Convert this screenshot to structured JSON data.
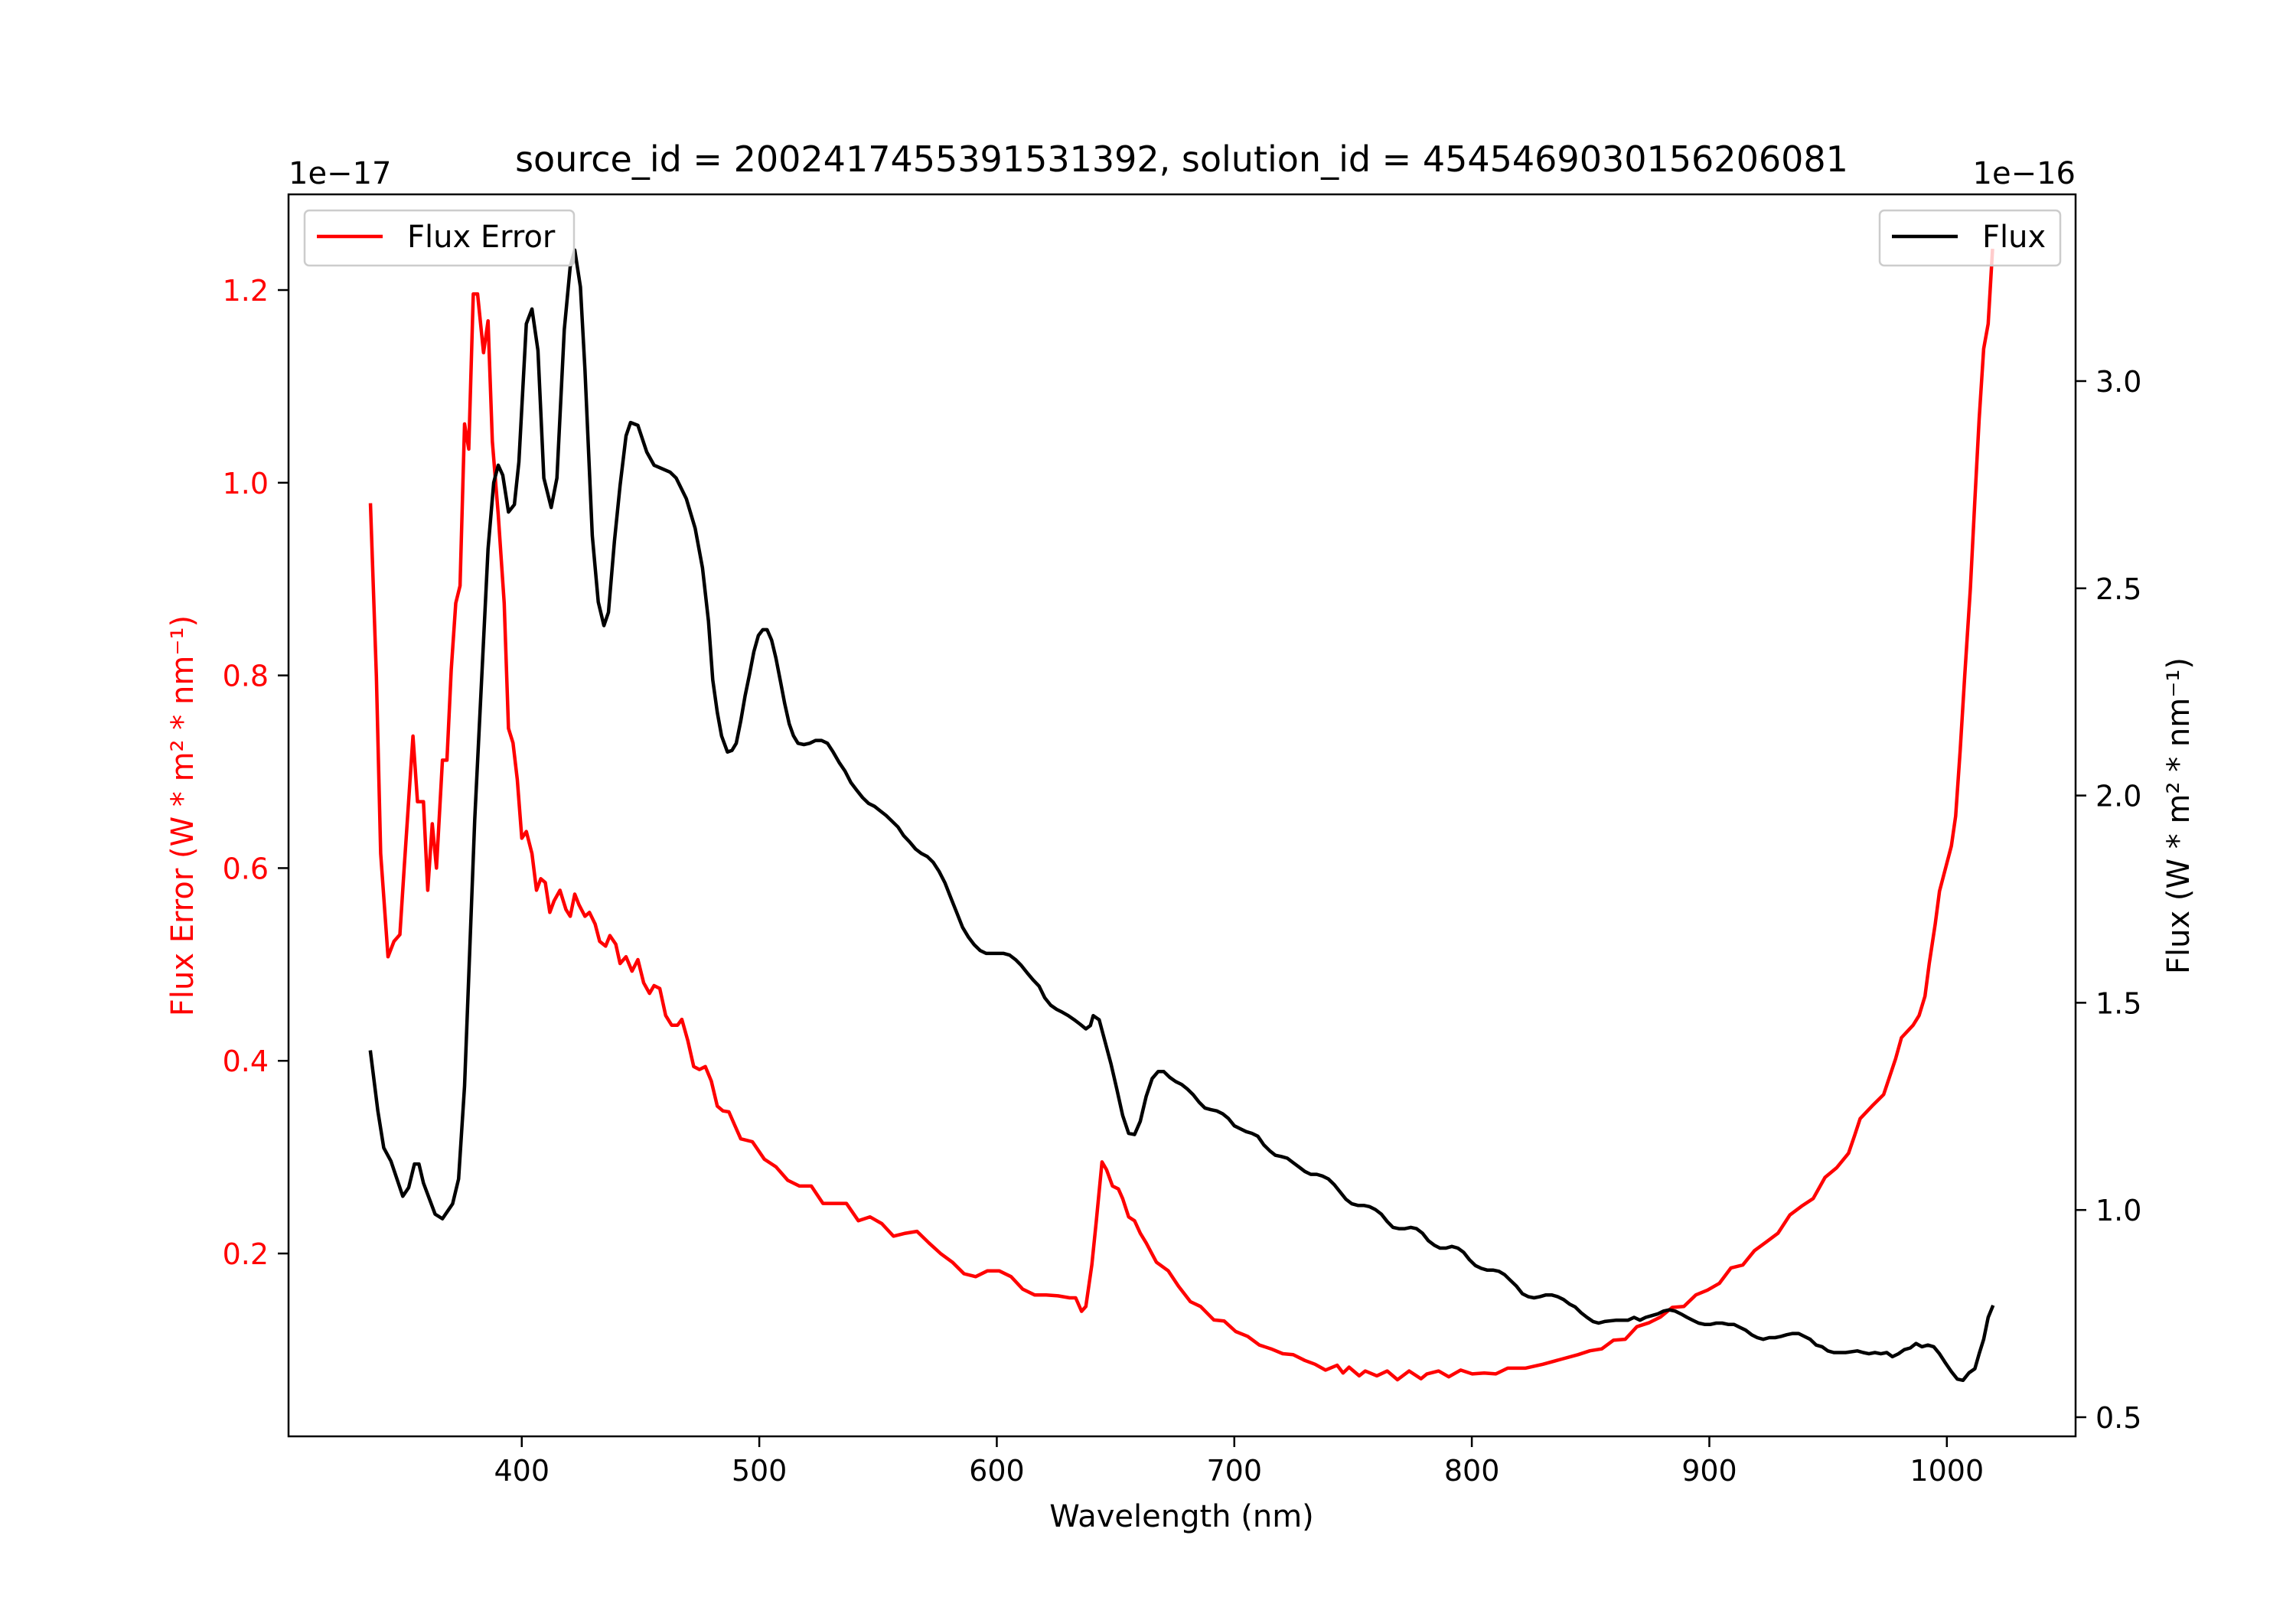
{
  "chart_data": {
    "type": "line",
    "title": "source_id = 2002417455391531392, solution_id = 4545469030156206081",
    "xlabel": "Wavelength (nm)",
    "ylabel_left": "Flux Error (W * m² * nm⁻¹)",
    "ylabel_right": "Flux (W * m² * nm⁻¹)",
    "offset_left": "1e−17",
    "offset_right": "1e−16",
    "xlim": [
      301.8,
      1054.2
    ],
    "ylim_left": [
      0.0102,
      1.2993
    ],
    "ylim_right": [
      0.4538,
      3.4505
    ],
    "xticks": [
      400,
      500,
      600,
      700,
      800,
      900,
      1000
    ],
    "xtick_labels": [
      "400",
      "500",
      "600",
      "700",
      "800",
      "900",
      "1000"
    ],
    "yticks_left": [
      0.2,
      0.4,
      0.6,
      0.8,
      1.0,
      1.2
    ],
    "ytick_labels_left": [
      "0.2",
      "0.4",
      "0.6",
      "0.8",
      "1.0",
      "1.2"
    ],
    "yticks_right": [
      0.5,
      1.0,
      1.5,
      2.0,
      2.5,
      3.0
    ],
    "ytick_labels_right": [
      "0.5",
      "1.0",
      "1.5",
      "2.0",
      "2.5",
      "3.0"
    ],
    "grid": false,
    "legends": [
      {
        "label": "Flux Error",
        "placement": "upper-left",
        "color": "#ff0000"
      },
      {
        "label": "Flux",
        "placement": "upper-right",
        "color": "#000000"
      }
    ],
    "colors": {
      "left_axis": "#ff0000",
      "right_axis": "#000000"
    },
    "series": [
      {
        "name": "Flux Error",
        "axis": "left",
        "color": "#ff0000",
        "x": [
          336.3,
          338.8,
          340.6,
          343.7,
          346.2,
          348.7,
          350.5,
          354.2,
          356.1,
          358.6,
          360.4,
          362.3,
          364.1,
          366.6,
          368.5,
          370.3,
          372.2,
          374.0,
          375.9,
          377.7,
          379.6,
          381.4,
          383.9,
          385.8,
          387.6,
          390.1,
          392.6,
          394.4,
          396.3,
          398.1,
          400.0,
          401.9,
          404.3,
          406.2,
          408.0,
          409.9,
          411.8,
          413.6,
          416.1,
          418.6,
          420.4,
          422.3,
          424.1,
          426.6,
          428.5,
          430.9,
          432.8,
          435.3,
          437.1,
          439.6,
          441.4,
          443.9,
          446.4,
          448.9,
          451.3,
          453.8,
          455.7,
          458.1,
          460.6,
          463.1,
          465.6,
          467.4,
          469.9,
          472.4,
          474.8,
          477.3,
          479.8,
          482.3,
          484.7,
          487.2,
          489.7,
          492.2,
          497.1,
          502.1,
          507.0,
          512.0,
          516.9,
          521.9,
          526.8,
          531.8,
          536.7,
          541.7,
          546.6,
          551.6,
          556.5,
          561.5,
          566.4,
          571.4,
          576.3,
          581.3,
          586.2,
          591.1,
          596.1,
          601.0,
          606.0,
          610.9,
          615.9,
          620.8,
          625.8,
          630.7,
          633.2,
          635.7,
          637.5,
          640.0,
          641.9,
          644.3,
          646.2,
          648.7,
          651.2,
          653.0,
          655.5,
          658.0,
          660.4,
          662.9,
          667.2,
          672.2,
          676.5,
          681.5,
          685.8,
          691.4,
          695.7,
          700.6,
          705.6,
          710.5,
          715.5,
          720.4,
          724.8,
          729.7,
          734.0,
          738.4,
          743.3,
          745.8,
          748.3,
          752.6,
          755.1,
          760.0,
          764.4,
          768.7,
          773.6,
          778.6,
          781.1,
          786.0,
          790.3,
          795.3,
          800.2,
          805.2,
          810.1,
          815.1,
          822.5,
          829.9,
          837.3,
          844.8,
          849.7,
          854.7,
          859.6,
          864.6,
          869.5,
          874.5,
          879.4,
          884.4,
          889.3,
          894.3,
          899.2,
          904.2,
          909.1,
          914.1,
          919.0,
          924.0,
          928.9,
          933.9,
          938.8,
          943.7,
          948.7,
          953.6,
          958.6,
          961.1,
          963.5,
          968.5,
          973.4,
          978.4,
          980.9,
          985.8,
          988.3,
          990.8,
          992.6,
          995.1,
          996.9,
          1001.9,
          1003.7,
          1005.6,
          1007.5,
          1009.9,
          1011.8,
          1013.6,
          1015.5,
          1017.4,
          1019.2
        ],
        "y": [
          0.977,
          0.799,
          0.615,
          0.508,
          0.524,
          0.531,
          0.6,
          0.737,
          0.669,
          0.669,
          0.577,
          0.646,
          0.6,
          0.712,
          0.712,
          0.806,
          0.875,
          0.893,
          1.061,
          1.035,
          1.196,
          1.196,
          1.135,
          1.168,
          1.043,
          0.967,
          0.875,
          0.745,
          0.73,
          0.692,
          0.631,
          0.638,
          0.615,
          0.577,
          0.589,
          0.585,
          0.554,
          0.566,
          0.577,
          0.557,
          0.55,
          0.573,
          0.562,
          0.55,
          0.554,
          0.542,
          0.524,
          0.519,
          0.53,
          0.521,
          0.501,
          0.508,
          0.493,
          0.505,
          0.481,
          0.47,
          0.478,
          0.475,
          0.447,
          0.437,
          0.437,
          0.443,
          0.421,
          0.394,
          0.391,
          0.394,
          0.379,
          0.353,
          0.348,
          0.347,
          0.333,
          0.319,
          0.316,
          0.298,
          0.29,
          0.276,
          0.27,
          0.27,
          0.252,
          0.252,
          0.252,
          0.234,
          0.238,
          0.231,
          0.218,
          0.221,
          0.223,
          0.211,
          0.2,
          0.191,
          0.179,
          0.176,
          0.182,
          0.182,
          0.176,
          0.163,
          0.157,
          0.157,
          0.156,
          0.154,
          0.154,
          0.14,
          0.145,
          0.188,
          0.234,
          0.295,
          0.287,
          0.27,
          0.267,
          0.257,
          0.238,
          0.234,
          0.221,
          0.211,
          0.191,
          0.182,
          0.166,
          0.15,
          0.145,
          0.131,
          0.13,
          0.119,
          0.114,
          0.105,
          0.101,
          0.096,
          0.095,
          0.089,
          0.085,
          0.079,
          0.084,
          0.076,
          0.082,
          0.073,
          0.078,
          0.073,
          0.078,
          0.069,
          0.078,
          0.07,
          0.075,
          0.078,
          0.072,
          0.079,
          0.075,
          0.076,
          0.075,
          0.081,
          0.081,
          0.085,
          0.09,
          0.095,
          0.099,
          0.101,
          0.11,
          0.111,
          0.124,
          0.128,
          0.134,
          0.144,
          0.145,
          0.157,
          0.162,
          0.169,
          0.185,
          0.188,
          0.203,
          0.212,
          0.221,
          0.24,
          0.249,
          0.257,
          0.279,
          0.289,
          0.304,
          0.322,
          0.34,
          0.353,
          0.365,
          0.402,
          0.424,
          0.437,
          0.447,
          0.467,
          0.501,
          0.542,
          0.576,
          0.623,
          0.654,
          0.722,
          0.799,
          0.89,
          0.982,
          1.066,
          1.139,
          1.165,
          1.241
        ]
      },
      {
        "name": "Flux",
        "axis": "right",
        "color": "#000000",
        "x": [
          336.3,
          339.4,
          341.9,
          344.9,
          349.9,
          352.4,
          354.8,
          356.7,
          358.6,
          363.5,
          366.6,
          370.9,
          373.4,
          375.9,
          380.2,
          385.8,
          388.2,
          390.1,
          392.0,
          394.4,
          396.9,
          398.8,
          401.9,
          404.3,
          406.8,
          409.3,
          412.4,
          414.8,
          417.9,
          420.4,
          422.3,
          424.7,
          426.6,
          429.7,
          432.2,
          434.6,
          436.5,
          439.0,
          441.4,
          443.9,
          445.8,
          448.9,
          452.6,
          455.7,
          462.5,
          465.0,
          469.3,
          473.0,
          476.1,
          478.6,
          480.4,
          482.3,
          484.1,
          486.6,
          488.5,
          490.3,
          492.2,
          494.0,
          495.9,
          497.7,
          499.6,
          501.5,
          503.3,
          505.2,
          507.0,
          508.9,
          510.7,
          512.6,
          514.4,
          516.3,
          518.8,
          521.2,
          523.7,
          526.2,
          528.7,
          531.1,
          533.6,
          536.1,
          538.6,
          541.0,
          543.5,
          546.0,
          548.5,
          550.9,
          553.4,
          555.9,
          558.4,
          560.8,
          563.3,
          565.8,
          568.3,
          570.7,
          573.2,
          575.7,
          578.2,
          580.6,
          583.1,
          585.6,
          588.1,
          590.5,
          593.0,
          595.5,
          598.0,
          602.9,
          605.4,
          607.9,
          610.3,
          612.8,
          615.3,
          617.8,
          620.2,
          622.7,
          625.2,
          627.6,
          630.1,
          632.6,
          635.1,
          637.5,
          639.4,
          640.6,
          643.1,
          645.6,
          648.1,
          650.5,
          653.0,
          655.5,
          658.0,
          660.4,
          662.9,
          665.4,
          667.9,
          670.3,
          672.8,
          675.3,
          677.8,
          680.2,
          682.7,
          685.2,
          687.6,
          690.1,
          692.6,
          695.1,
          697.5,
          700.0,
          702.5,
          705.0,
          707.4,
          709.9,
          712.4,
          714.9,
          717.3,
          719.8,
          722.3,
          724.8,
          727.2,
          729.7,
          732.2,
          734.7,
          737.1,
          739.6,
          742.1,
          744.6,
          747.0,
          749.5,
          752.0,
          754.5,
          756.9,
          759.4,
          761.9,
          764.4,
          766.8,
          769.3,
          771.8,
          774.3,
          776.7,
          779.2,
          781.7,
          784.2,
          786.6,
          789.1,
          791.6,
          794.1,
          796.5,
          799.0,
          801.5,
          804.0,
          806.4,
          808.9,
          811.4,
          813.8,
          816.3,
          818.8,
          821.3,
          823.7,
          826.2,
          828.7,
          831.2,
          833.6,
          836.1,
          838.6,
          841.1,
          843.5,
          846.0,
          848.5,
          851.0,
          853.4,
          855.9,
          860.9,
          865.8,
          868.3,
          870.8,
          873.2,
          875.7,
          878.2,
          880.7,
          883.1,
          885.6,
          888.1,
          890.6,
          893.0,
          895.5,
          898.0,
          900.5,
          902.9,
          905.4,
          907.9,
          910.4,
          912.8,
          915.3,
          917.8,
          920.2,
          922.7,
          925.2,
          927.7,
          930.1,
          932.6,
          935.1,
          937.6,
          940.0,
          942.5,
          945.0,
          947.5,
          949.9,
          952.4,
          957.4,
          962.3,
          964.8,
          967.2,
          969.7,
          972.2,
          974.7,
          977.1,
          979.6,
          982.1,
          984.6,
          987.0,
          989.5,
          992.0,
          994.5,
          996.9,
          999.4,
          1001.9,
          1004.4,
          1006.8,
          1009.3,
          1011.8,
          1013.6,
          1015.5,
          1017.4,
          1019.2
        ],
        "y": [
          1.381,
          1.239,
          1.15,
          1.118,
          1.033,
          1.054,
          1.111,
          1.111,
          1.065,
          0.99,
          0.979,
          1.015,
          1.075,
          1.299,
          1.942,
          2.595,
          2.755,
          2.797,
          2.773,
          2.684,
          2.702,
          2.805,
          3.138,
          3.174,
          3.074,
          2.766,
          2.695,
          2.766,
          3.124,
          3.277,
          3.316,
          3.227,
          3.028,
          2.627,
          2.467,
          2.41,
          2.442,
          2.613,
          2.748,
          2.868,
          2.9,
          2.893,
          2.829,
          2.797,
          2.78,
          2.766,
          2.716,
          2.645,
          2.549,
          2.421,
          2.279,
          2.201,
          2.144,
          2.105,
          2.109,
          2.126,
          2.18,
          2.24,
          2.293,
          2.347,
          2.386,
          2.4,
          2.4,
          2.375,
          2.332,
          2.276,
          2.222,
          2.173,
          2.144,
          2.126,
          2.123,
          2.126,
          2.133,
          2.133,
          2.126,
          2.105,
          2.08,
          2.059,
          2.031,
          2.013,
          1.995,
          1.981,
          1.974,
          1.963,
          1.952,
          1.938,
          1.924,
          1.903,
          1.888,
          1.871,
          1.86,
          1.853,
          1.839,
          1.817,
          1.789,
          1.754,
          1.718,
          1.682,
          1.658,
          1.64,
          1.626,
          1.619,
          1.619,
          1.619,
          1.615,
          1.604,
          1.59,
          1.572,
          1.555,
          1.54,
          1.512,
          1.494,
          1.484,
          1.477,
          1.469,
          1.459,
          1.448,
          1.437,
          1.445,
          1.469,
          1.459,
          1.406,
          1.352,
          1.292,
          1.228,
          1.185,
          1.182,
          1.214,
          1.274,
          1.317,
          1.334,
          1.334,
          1.32,
          1.31,
          1.303,
          1.292,
          1.278,
          1.26,
          1.246,
          1.242,
          1.239,
          1.232,
          1.221,
          1.203,
          1.196,
          1.189,
          1.185,
          1.178,
          1.157,
          1.143,
          1.132,
          1.129,
          1.125,
          1.114,
          1.104,
          1.093,
          1.086,
          1.086,
          1.082,
          1.075,
          1.061,
          1.043,
          1.026,
          1.015,
          1.011,
          1.011,
          1.008,
          1.001,
          0.99,
          0.972,
          0.958,
          0.955,
          0.955,
          0.958,
          0.955,
          0.944,
          0.926,
          0.915,
          0.908,
          0.908,
          0.912,
          0.908,
          0.898,
          0.88,
          0.866,
          0.859,
          0.855,
          0.855,
          0.852,
          0.844,
          0.83,
          0.816,
          0.798,
          0.791,
          0.788,
          0.791,
          0.795,
          0.795,
          0.791,
          0.784,
          0.773,
          0.766,
          0.752,
          0.741,
          0.731,
          0.727,
          0.731,
          0.734,
          0.734,
          0.741,
          0.734,
          0.741,
          0.745,
          0.749,
          0.756,
          0.759,
          0.756,
          0.749,
          0.741,
          0.734,
          0.727,
          0.724,
          0.724,
          0.727,
          0.727,
          0.724,
          0.724,
          0.717,
          0.71,
          0.699,
          0.692,
          0.688,
          0.692,
          0.692,
          0.695,
          0.699,
          0.702,
          0.702,
          0.695,
          0.688,
          0.674,
          0.67,
          0.66,
          0.656,
          0.656,
          0.66,
          0.656,
          0.653,
          0.656,
          0.653,
          0.656,
          0.646,
          0.653,
          0.663,
          0.667,
          0.678,
          0.67,
          0.674,
          0.67,
          0.653,
          0.631,
          0.61,
          0.592,
          0.589,
          0.607,
          0.617,
          0.653,
          0.688,
          0.741,
          0.766
        ]
      }
    ]
  }
}
